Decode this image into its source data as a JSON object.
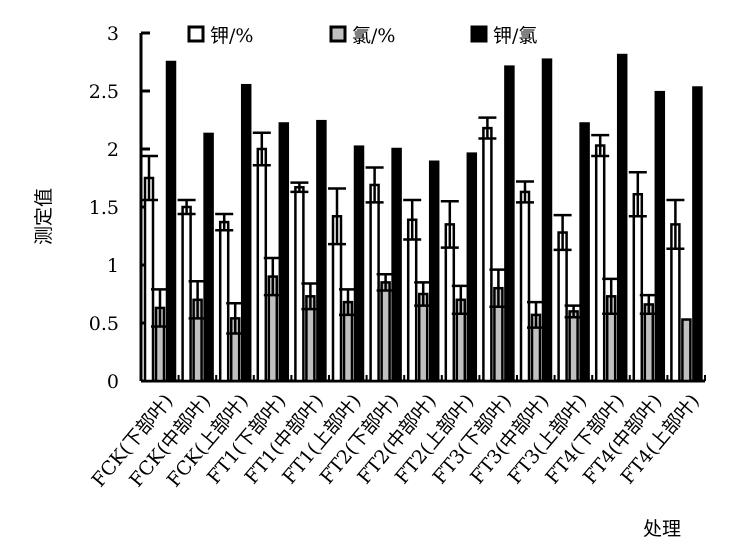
{
  "chart_data": {
    "type": "bar",
    "title": "",
    "xlabel": "处理",
    "ylabel": "测定值",
    "ylim": [
      0,
      3
    ],
    "yticks": [
      "0",
      "0.5",
      "1",
      "1.5",
      "2",
      "2.5",
      "3"
    ],
    "legend_position": "top",
    "grid": false,
    "categories": [
      "FCK(下部叶)",
      "FCK(中部叶)",
      "FCK(上部叶)",
      "FT1(下部叶)",
      "FT1(中部叶)",
      "FT1(上部叶)",
      "FT2(下部叶)",
      "FT2(中部叶)",
      "FT2(上部叶)",
      "FT3(下部叶)",
      "FT3(中部叶)",
      "FT3(上部叶)",
      "FT4(下部叶)",
      "FT4(中部叶)",
      "FT4(上部叶)"
    ],
    "series": [
      {
        "name": "钾/%",
        "color": "#ffffff",
        "values": [
          1.75,
          1.5,
          1.37,
          2.0,
          1.67,
          1.42,
          1.69,
          1.39,
          1.35,
          2.18,
          1.63,
          1.28,
          2.03,
          1.61,
          1.35
        ],
        "errors": [
          0.19,
          0.06,
          0.07,
          0.14,
          0.04,
          0.24,
          0.15,
          0.17,
          0.2,
          0.09,
          0.09,
          0.15,
          0.09,
          0.19,
          0.21
        ]
      },
      {
        "name": "氯/%",
        "color": "#c0c0c0",
        "values": [
          0.63,
          0.7,
          0.54,
          0.9,
          0.73,
          0.68,
          0.85,
          0.75,
          0.7,
          0.8,
          0.57,
          0.6,
          0.73,
          0.66,
          0.53
        ],
        "errors": [
          0.16,
          0.16,
          0.13,
          0.16,
          0.11,
          0.11,
          0.07,
          0.1,
          0.12,
          0.16,
          0.11,
          0.05,
          0.15,
          0.08,
          0.0
        ]
      },
      {
        "name": "钾/氯",
        "color": "#000000",
        "values": [
          2.75,
          2.13,
          2.55,
          2.22,
          2.24,
          2.02,
          2.0,
          1.89,
          1.96,
          2.71,
          2.77,
          2.22,
          2.81,
          2.49,
          2.53
        ],
        "errors": [
          0,
          0,
          0,
          0,
          0,
          0,
          0,
          0,
          0,
          0,
          0,
          0,
          0,
          0,
          0
        ]
      }
    ]
  }
}
